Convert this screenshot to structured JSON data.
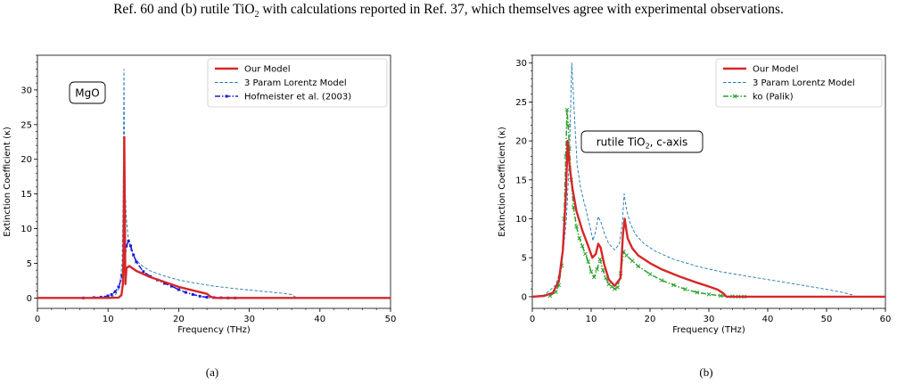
{
  "caption": {
    "text_before": "Ref. 60 and (b) rutile TiO",
    "sub": "2",
    "text_after": " with calculations reported in Ref. 37, which themselves agree with experimental observations."
  },
  "colors": {
    "our_model": "#d62728",
    "lorentz": "#1f77b4",
    "hofmeister": "#1a1adb",
    "palik": "#2ca02c"
  },
  "chart_data": [
    {
      "type": "line",
      "panel_label": "(a)",
      "annotation": "MgO",
      "xlabel": "Frequency (THz)",
      "ylabel": "Extinction Coefficient (κ)",
      "xlim": [
        0,
        50
      ],
      "ylim": [
        -1.5,
        35
      ],
      "xticks": [
        0,
        10,
        20,
        30,
        40,
        50
      ],
      "yticks": [
        0,
        5,
        10,
        15,
        20,
        25,
        30
      ],
      "grid": false,
      "legend_position": "top-right",
      "series": [
        {
          "name": "Our Model",
          "style": "solid",
          "color": "#d62728",
          "x": [
            0,
            10,
            11.5,
            11.9,
            12.1,
            12.2,
            12.3,
            12.45,
            12.6,
            13,
            14,
            16,
            18,
            20,
            22,
            24,
            24.5,
            25,
            30,
            50
          ],
          "y": [
            0,
            0,
            0.05,
            0.4,
            2,
            7,
            23.2,
            2,
            4.3,
            4.6,
            3.9,
            3.0,
            2.3,
            1.6,
            1.1,
            0.6,
            0.2,
            0,
            0,
            0
          ]
        },
        {
          "name": "3 Param Lorentz Model",
          "style": "dashed",
          "color": "#1f77b4",
          "x": [
            0,
            8,
            10,
            11,
            11.6,
            12.0,
            12.15,
            12.25,
            12.35,
            12.55,
            12.8,
            13.2,
            14,
            15,
            16,
            18,
            20,
            22,
            25,
            28,
            31,
            34,
            36,
            36.4,
            37,
            50
          ],
          "y": [
            0,
            0.02,
            0.1,
            0.35,
            1.5,
            5,
            15,
            33,
            18,
            12,
            9,
            7,
            5.4,
            4.5,
            3.9,
            3.15,
            2.6,
            2.2,
            1.7,
            1.35,
            1.05,
            0.75,
            0.5,
            0.2,
            0,
            0
          ]
        },
        {
          "name": "Hofmeister et al. (2003)",
          "style": "dashdot-marker",
          "color": "#1a1adb",
          "x": [
            6.5,
            8,
            9,
            10,
            10.5,
            11,
            11.5,
            12,
            12.3,
            12.6,
            12.9,
            13.2,
            13.6,
            14,
            15,
            16,
            17,
            18,
            19,
            20,
            21,
            22,
            23,
            24,
            25,
            26,
            27,
            28
          ],
          "y": [
            0,
            0.05,
            0.12,
            0.3,
            0.5,
            0.9,
            1.6,
            3.2,
            5.2,
            7.5,
            8.2,
            7.5,
            6.2,
            5.2,
            3.8,
            3.1,
            2.6,
            2.1,
            1.7,
            1.2,
            0.8,
            0.5,
            0.25,
            0.1,
            0.05,
            0.02,
            0,
            0
          ]
        }
      ]
    },
    {
      "type": "line",
      "panel_label": "(b)",
      "annotation_main": "rutile TiO",
      "annotation_sub": "2",
      "annotation_tail": ", c-axis",
      "xlabel": "Frequency (THz)",
      "ylabel": "Extinction Coefficient (κ)",
      "xlim": [
        0,
        60
      ],
      "ylim": [
        -1.5,
        31
      ],
      "xticks": [
        0,
        10,
        20,
        30,
        40,
        50,
        60
      ],
      "yticks": [
        0,
        5,
        10,
        15,
        20,
        25,
        30
      ],
      "grid": false,
      "legend_position": "top-right",
      "series": [
        {
          "name": "Our Model",
          "style": "solid",
          "color": "#d62728",
          "x": [
            0,
            2,
            3.5,
            4.5,
            5.2,
            5.7,
            6.0,
            6.3,
            6.8,
            7.5,
            8.5,
            9.5,
            10.2,
            10.8,
            11.2,
            11.6,
            12.2,
            13,
            14,
            15,
            15.4,
            15.7,
            16.2,
            17,
            18,
            20,
            22,
            25,
            28,
            30,
            31.5,
            32.5,
            33,
            40,
            60
          ],
          "y": [
            0,
            0.1,
            0.5,
            2,
            6,
            13,
            20,
            17,
            14,
            11,
            8.5,
            6.5,
            5.0,
            5.5,
            6.8,
            6.3,
            4.2,
            2.2,
            1.4,
            2.4,
            8,
            10,
            7.5,
            6.2,
            5.3,
            4.3,
            3.5,
            2.6,
            1.8,
            1.3,
            0.9,
            0.4,
            0,
            0,
            0
          ]
        },
        {
          "name": "3 Param Lorentz Model",
          "style": "dashed",
          "color": "#1f77b4",
          "x": [
            0,
            2,
            4,
            5,
            5.8,
            6.3,
            6.7,
            7.1,
            7.6,
            8.2,
            9,
            9.8,
            10.3,
            10.8,
            11.2,
            11.7,
            12.3,
            13,
            14,
            14.8,
            15.3,
            15.6,
            16,
            16.6,
            17.5,
            19,
            21,
            24,
            28,
            32,
            36,
            40,
            44,
            48,
            51,
            53,
            54.5,
            55,
            60
          ],
          "y": [
            0,
            0.2,
            1.5,
            4,
            10,
            18,
            30,
            24,
            17,
            14,
            11.5,
            9,
            7.2,
            8.5,
            10.3,
            9.5,
            8,
            6.8,
            6.0,
            6.8,
            9.5,
            13.2,
            11.2,
            9.5,
            8,
            6.8,
            5.8,
            4.8,
            3.9,
            3.2,
            2.7,
            2.2,
            1.7,
            1.2,
            0.8,
            0.5,
            0.2,
            0,
            0
          ]
        },
        {
          "name": "ko (Palik)",
          "style": "dashdot-marker",
          "color": "#2ca02c",
          "x": [
            3,
            4,
            4.5,
            5,
            5.4,
            5.7,
            5.9,
            6.1,
            6.3,
            6.6,
            7,
            7.5,
            8,
            8.5,
            9,
            9.5,
            10,
            10.5,
            11,
            11.5,
            12,
            12.5,
            13,
            13.5,
            14,
            14.5,
            15,
            15.5,
            16,
            17,
            18,
            20,
            22,
            24,
            26,
            28,
            30,
            32,
            34,
            35,
            36
          ],
          "y": [
            0.1,
            0.6,
            1.5,
            4,
            10,
            18,
            24,
            22,
            19,
            15,
            11.5,
            9,
            7.5,
            6.5,
            5.5,
            4.5,
            3.2,
            2.5,
            3.5,
            4.8,
            3.4,
            2.4,
            1.6,
            1.3,
            1.0,
            1.2,
            3.0,
            5.8,
            5.3,
            4.6,
            3.9,
            2.9,
            2.1,
            1.5,
            0.95,
            0.55,
            0.3,
            0.12,
            0.03,
            0.01,
            0
          ]
        }
      ]
    }
  ]
}
